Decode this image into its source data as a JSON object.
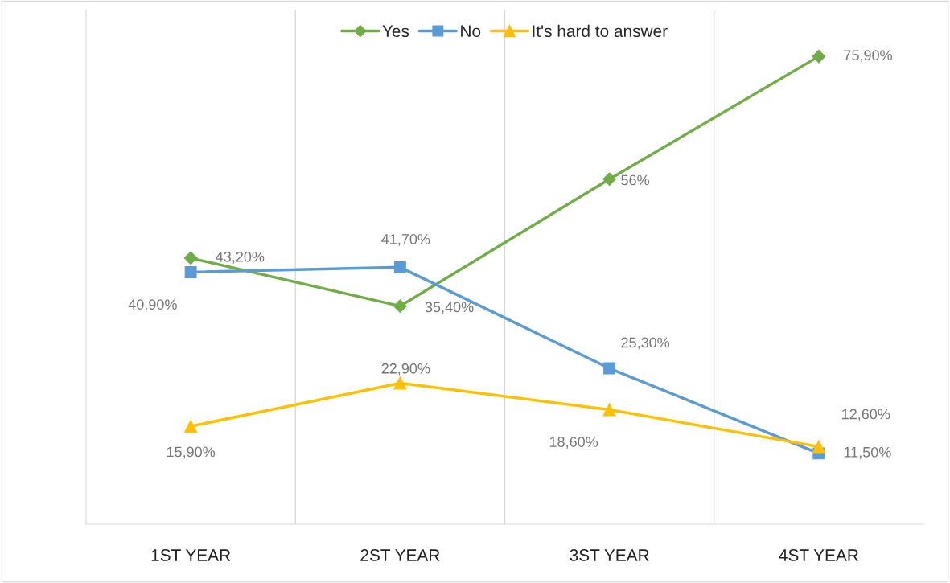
{
  "chart_data": {
    "type": "line",
    "relative": false,
    "categories": [
      "1ST YEAR",
      "2ST YEAR",
      "3ST YEAR",
      "4ST YEAR"
    ],
    "series": [
      {
        "name": "Yes",
        "color": "#70ad47",
        "marker": "diamond",
        "values": [
          43.2,
          35.4,
          56,
          75.9
        ],
        "value_labels": [
          "43,20%",
          "35,40%",
          "56%",
          "75,90%"
        ]
      },
      {
        "name": "No",
        "color": "#5b9bd5",
        "marker": "square",
        "values": [
          40.9,
          41.7,
          25.3,
          11.5
        ],
        "value_labels": [
          "40,90%",
          "41,70%",
          "25,30%",
          "11,50%"
        ]
      },
      {
        "name": "It's hard to answer",
        "color": "#ffc000",
        "marker": "triangle",
        "values": [
          15.9,
          22.9,
          18.6,
          12.6
        ],
        "value_labels": [
          "15,90%",
          "22,90%",
          "18,60%",
          "12,60%"
        ]
      }
    ],
    "grid": "x",
    "legend": "top",
    "line_style": "solid"
  }
}
